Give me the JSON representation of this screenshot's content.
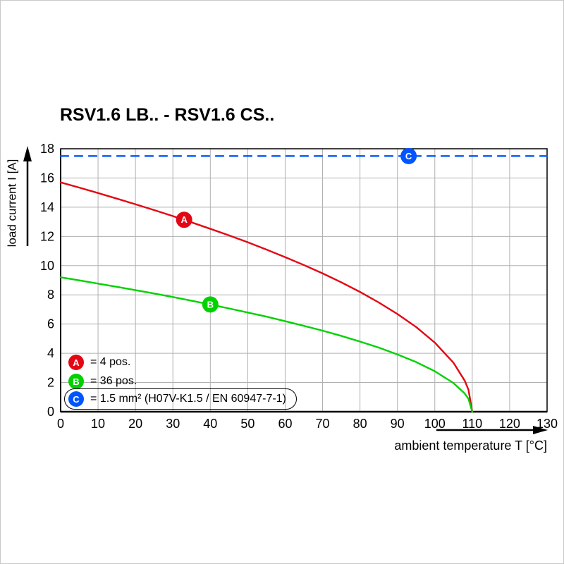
{
  "title": "RSV1.6 LB.. - RSV1.6 CS..",
  "chart_data": {
    "type": "line",
    "title": "RSV1.6 LB.. - RSV1.6 CS..",
    "xlabel": "ambient temperature T [°C]",
    "ylabel": "load current I [A]",
    "xlim": [
      0,
      130
    ],
    "ylim": [
      0,
      18
    ],
    "xticks": [
      0,
      10,
      20,
      30,
      40,
      50,
      60,
      70,
      80,
      90,
      100,
      110,
      120,
      130
    ],
    "yticks": [
      0,
      2,
      4,
      6,
      8,
      10,
      12,
      14,
      16,
      18
    ],
    "grid": true,
    "grid_color": "#b0b0b0",
    "legend_position": "bottom-left-inside",
    "series": [
      {
        "name": "A",
        "label": "= 4 pos.",
        "color": "#e30613",
        "style": "solid",
        "marker": {
          "x": 33,
          "y": 13.14
        },
        "points": [
          [
            0,
            15.7
          ],
          [
            5,
            15.34
          ],
          [
            10,
            14.97
          ],
          [
            15,
            14.59
          ],
          [
            20,
            14.2
          ],
          [
            25,
            13.8
          ],
          [
            30,
            13.39
          ],
          [
            35,
            12.96
          ],
          [
            40,
            12.52
          ],
          [
            45,
            12.07
          ],
          [
            50,
            11.6
          ],
          [
            55,
            11.1
          ],
          [
            60,
            10.58
          ],
          [
            65,
            10.04
          ],
          [
            70,
            9.47
          ],
          [
            75,
            8.86
          ],
          [
            80,
            8.2
          ],
          [
            85,
            7.48
          ],
          [
            90,
            6.69
          ],
          [
            95,
            5.8
          ],
          [
            100,
            4.73
          ],
          [
            105,
            3.35
          ],
          [
            108,
            2.12
          ],
          [
            109,
            1.5
          ],
          [
            110,
            0
          ]
        ]
      },
      {
        "name": "B",
        "label": "= 36 pos.",
        "color": "#00d200",
        "style": "solid",
        "marker": {
          "x": 40,
          "y": 7.34
        },
        "points": [
          [
            0,
            9.2
          ],
          [
            5,
            8.99
          ],
          [
            10,
            8.77
          ],
          [
            15,
            8.55
          ],
          [
            20,
            8.32
          ],
          [
            25,
            8.09
          ],
          [
            30,
            7.85
          ],
          [
            35,
            7.6
          ],
          [
            40,
            7.34
          ],
          [
            45,
            7.07
          ],
          [
            50,
            6.79
          ],
          [
            55,
            6.51
          ],
          [
            60,
            6.2
          ],
          [
            65,
            5.88
          ],
          [
            70,
            5.55
          ],
          [
            75,
            5.19
          ],
          [
            80,
            4.8
          ],
          [
            85,
            4.39
          ],
          [
            90,
            3.92
          ],
          [
            95,
            3.4
          ],
          [
            100,
            2.77
          ],
          [
            105,
            1.96
          ],
          [
            108,
            1.24
          ],
          [
            109,
            0.88
          ],
          [
            110,
            0
          ]
        ]
      },
      {
        "name": "C",
        "label": "= 1.5 mm² (H07V-K1.5 / EN 60947-7-1)",
        "color": "#0055ff",
        "style": "dashed",
        "marker": {
          "x": 93,
          "y": 17.5
        },
        "points": [
          [
            0,
            17.5
          ],
          [
            130,
            17.5
          ]
        ]
      }
    ]
  }
}
